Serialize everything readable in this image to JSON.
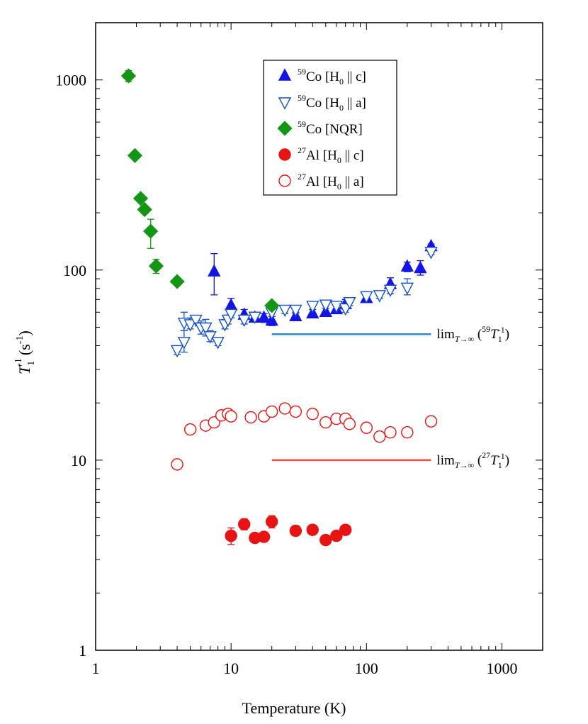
{
  "chart_data": {
    "type": "scatter",
    "xscale": "log",
    "yscale": "log",
    "xlim": [
      1,
      2000
    ],
    "ylim": [
      1,
      2000
    ],
    "x_ticks": [
      "1",
      "10",
      "100",
      "1000"
    ],
    "y_ticks": [
      "1",
      "10",
      "100",
      "1000"
    ],
    "xlabel": "Temperature (K)",
    "ylabel": {
      "base": "T",
      "sub": "1",
      "sup": "-1",
      "unit_open": "(s",
      "unit_sup": "-1",
      "unit_close": ")"
    },
    "legend_position": "top-center",
    "series": [
      {
        "key": "co_c",
        "legend": {
          "sup": "59",
          "nucleus": "Co",
          "bracket_open": " [H",
          "sub": "0",
          "bracket_rest": " || c]"
        },
        "marker": "triangle-up",
        "filled": true,
        "color": "#1414e6",
        "points": [
          [
            7.5,
            98,
            74,
            122
          ],
          [
            10,
            65,
            60,
            71
          ],
          [
            12.5,
            58,
            55,
            62
          ],
          [
            15,
            56,
            54,
            59
          ],
          [
            17.5,
            56,
            53,
            59
          ],
          [
            20,
            54,
            51,
            57
          ],
          [
            30,
            57,
            55,
            60
          ],
          [
            40,
            59,
            56,
            62
          ],
          [
            50,
            60,
            57,
            63
          ],
          [
            60,
            62,
            59,
            65
          ],
          [
            70,
            66,
            62,
            70
          ],
          [
            100,
            71,
            68,
            74
          ],
          [
            150,
            84,
            78,
            91
          ],
          [
            200,
            104,
            98,
            110
          ],
          [
            250,
            102,
            94,
            112
          ],
          [
            300,
            133,
            130,
            137
          ]
        ]
      },
      {
        "key": "co_a",
        "legend": {
          "sup": "59",
          "nucleus": "Co",
          "bracket_open": " [H",
          "sub": "0",
          "bracket_rest": " || a]"
        },
        "marker": "triangle-down",
        "filled": false,
        "color": "#1450c8",
        "points": [
          [
            4,
            38,
            36,
            40
          ],
          [
            4.5,
            42,
            37,
            48
          ],
          [
            4.5,
            53,
            48,
            60
          ],
          [
            5,
            52,
            49,
            56
          ],
          [
            5.5,
            55,
            53,
            57
          ],
          [
            6,
            50,
            46,
            54
          ],
          [
            6.5,
            50,
            45,
            55
          ],
          [
            7,
            45,
            42,
            48
          ],
          [
            8,
            42,
            40,
            44
          ],
          [
            9,
            52,
            49,
            55
          ],
          [
            9.5,
            55,
            52,
            58
          ],
          [
            10,
            59,
            56,
            62
          ],
          [
            12.5,
            55,
            52,
            58
          ],
          [
            15,
            57,
            54,
            60
          ],
          [
            20,
            60,
            57,
            63
          ],
          [
            25,
            62,
            59,
            65
          ],
          [
            30,
            62,
            59,
            65
          ],
          [
            40,
            65,
            62,
            68
          ],
          [
            50,
            66,
            63,
            69
          ],
          [
            60,
            65,
            62,
            68
          ],
          [
            70,
            63,
            60,
            66
          ],
          [
            75,
            68,
            65,
            71
          ],
          [
            100,
            73,
            70,
            76
          ],
          [
            125,
            74,
            71,
            77
          ],
          [
            150,
            79,
            75,
            83
          ],
          [
            200,
            81,
            74,
            90
          ],
          [
            300,
            125,
            121,
            129
          ]
        ]
      },
      {
        "key": "co_nqr",
        "legend": {
          "sup": "59",
          "nucleus": "Co",
          "bracket_open": " [NQR]",
          "sub": "",
          "bracket_rest": ""
        },
        "marker": "diamond",
        "filled": true,
        "color": "#149614",
        "points": [
          [
            1.75,
            1050,
            980,
            1120
          ],
          [
            1.95,
            400,
            385,
            415
          ],
          [
            2.15,
            238,
            228,
            248
          ],
          [
            2.3,
            208,
            198,
            218
          ],
          [
            2.55,
            160,
            130,
            185
          ],
          [
            2.8,
            105,
            96,
            114
          ],
          [
            4,
            87,
            87,
            87
          ],
          [
            20,
            65,
            65,
            65
          ]
        ]
      },
      {
        "key": "al_c",
        "legend": {
          "sup": "27",
          "nucleus": "Al",
          "bracket_open": " [H",
          "sub": "0",
          "bracket_rest": " || c]"
        },
        "marker": "circle",
        "filled": true,
        "color": "#e81414",
        "points": [
          [
            10,
            4.0,
            3.6,
            4.4
          ],
          [
            12.5,
            4.6,
            4.3,
            4.9
          ],
          [
            15,
            3.9,
            3.7,
            4.1
          ],
          [
            17.5,
            3.95,
            3.75,
            4.15
          ],
          [
            20,
            4.75,
            4.4,
            5.1
          ],
          [
            30,
            4.25,
            4.0,
            4.5
          ],
          [
            40,
            4.3,
            4.1,
            4.5
          ],
          [
            50,
            3.8,
            3.65,
            3.95
          ],
          [
            60,
            4.0,
            3.8,
            4.2
          ],
          [
            70,
            4.3,
            4.05,
            4.55
          ]
        ]
      },
      {
        "key": "al_a",
        "legend": {
          "sup": "27",
          "nucleus": "Al",
          "bracket_open": " [H",
          "sub": "0",
          "bracket_rest": " || a]"
        },
        "marker": "circle",
        "filled": false,
        "color": "#e81414",
        "points": [
          [
            4,
            9.5,
            9.2,
            9.8
          ],
          [
            5,
            14.5,
            14,
            15
          ],
          [
            6.5,
            15.2,
            14.5,
            16
          ],
          [
            7.5,
            15.8,
            15,
            16.6
          ],
          [
            8.5,
            17.2,
            16.5,
            18
          ],
          [
            9.5,
            17.5,
            17,
            18
          ],
          [
            10,
            17,
            16.3,
            17.7
          ],
          [
            14,
            16.8,
            16.2,
            17.4
          ],
          [
            17.5,
            17,
            16.4,
            17.6
          ],
          [
            20,
            18,
            17.4,
            18.6
          ],
          [
            25,
            18.7,
            18,
            19.4
          ],
          [
            30,
            18,
            17.4,
            18.6
          ],
          [
            40,
            17.5,
            16.9,
            18.1
          ],
          [
            50,
            15.8,
            15.2,
            16.4
          ],
          [
            60,
            16.5,
            15.8,
            17.2
          ],
          [
            70,
            16.5,
            15.8,
            17.2
          ],
          [
            75,
            15.5,
            14.9,
            16.1
          ],
          [
            100,
            14.8,
            14.2,
            15.4
          ],
          [
            125,
            13.3,
            12.8,
            13.8
          ],
          [
            150,
            14,
            13.4,
            14.6
          ],
          [
            200,
            14,
            13.4,
            14.6
          ],
          [
            300,
            16,
            15.4,
            16.6
          ]
        ]
      }
    ],
    "reference_lines": [
      {
        "key": "lim59",
        "x_start": 20,
        "x_end": 300,
        "y": 46,
        "color": "#2a8cc8",
        "label": {
          "lim": "lim",
          "sub": "T→∞",
          "open": " (",
          "sup": "59",
          "T": "T",
          "Tsub": "1",
          "Tsup": "-1",
          "close": ")"
        }
      },
      {
        "key": "lim27",
        "x_start": 20,
        "x_end": 300,
        "y": 10,
        "color": "#f04c3c",
        "label": {
          "lim": "lim",
          "sub": "T→∞",
          "open": " (",
          "sup": "27",
          "T": "T",
          "Tsub": "1",
          "Tsup": "-1",
          "close": ")"
        }
      }
    ]
  }
}
